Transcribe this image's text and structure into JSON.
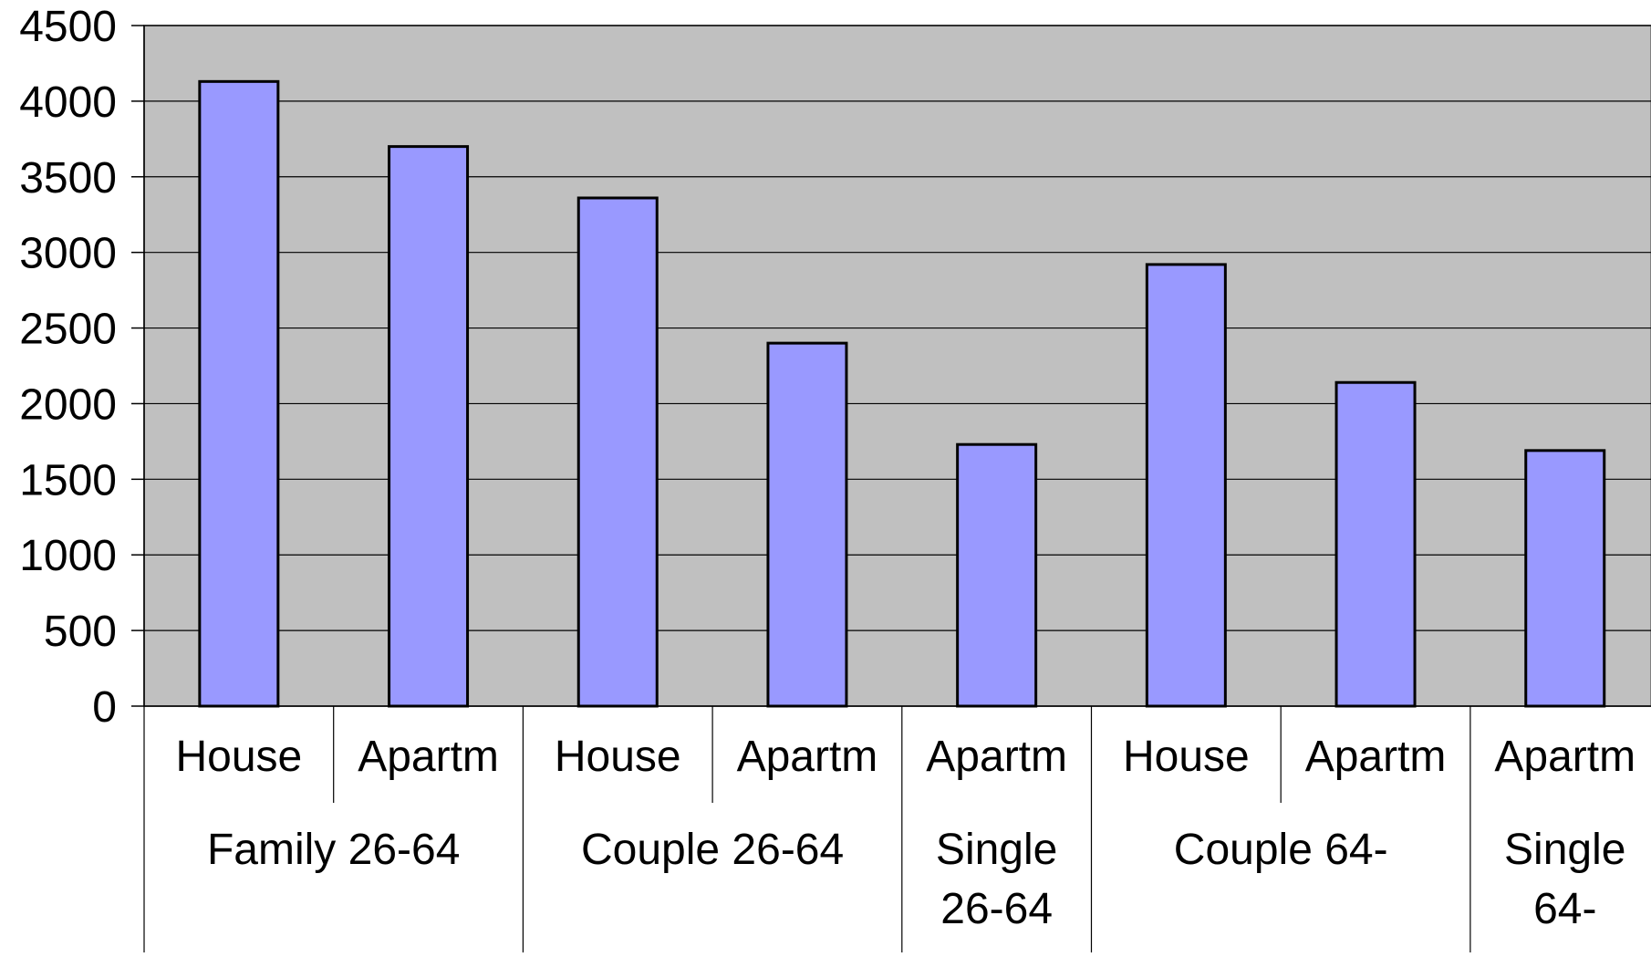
{
  "chart_data": {
    "type": "bar",
    "title": "",
    "xlabel": "",
    "ylabel": "",
    "ylim": [
      0,
      4500
    ],
    "yticks": [
      0,
      500,
      1000,
      1500,
      2000,
      2500,
      3000,
      3500,
      4000,
      4500
    ],
    "grid": true,
    "legend": "none",
    "groups": [
      {
        "label_lines": [
          "Family 26-64"
        ],
        "categories": [
          "House",
          "Apartm"
        ]
      },
      {
        "label_lines": [
          "Couple 26-64"
        ],
        "categories": [
          "House",
          "Apartm"
        ]
      },
      {
        "label_lines": [
          "Single",
          "26-64"
        ],
        "categories": [
          "Apartm"
        ]
      },
      {
        "label_lines": [
          "Couple 64-"
        ],
        "categories": [
          "House",
          "Apartm"
        ]
      },
      {
        "label_lines": [
          "Single",
          "64-"
        ],
        "categories": [
          "Apartm"
        ]
      }
    ],
    "categories": [
      "House",
      "Apartm",
      "House",
      "Apartm",
      "Apartm",
      "House",
      "Apartm",
      "Apartm"
    ],
    "values": [
      4130,
      3700,
      3360,
      2400,
      1730,
      2920,
      2140,
      1690
    ],
    "colors": {
      "bar_fill": "#9999ff",
      "bar_stroke": "#000000",
      "plot_background": "#c0c0c0",
      "gridline": "#000000",
      "page_background": "#ffffff"
    }
  }
}
